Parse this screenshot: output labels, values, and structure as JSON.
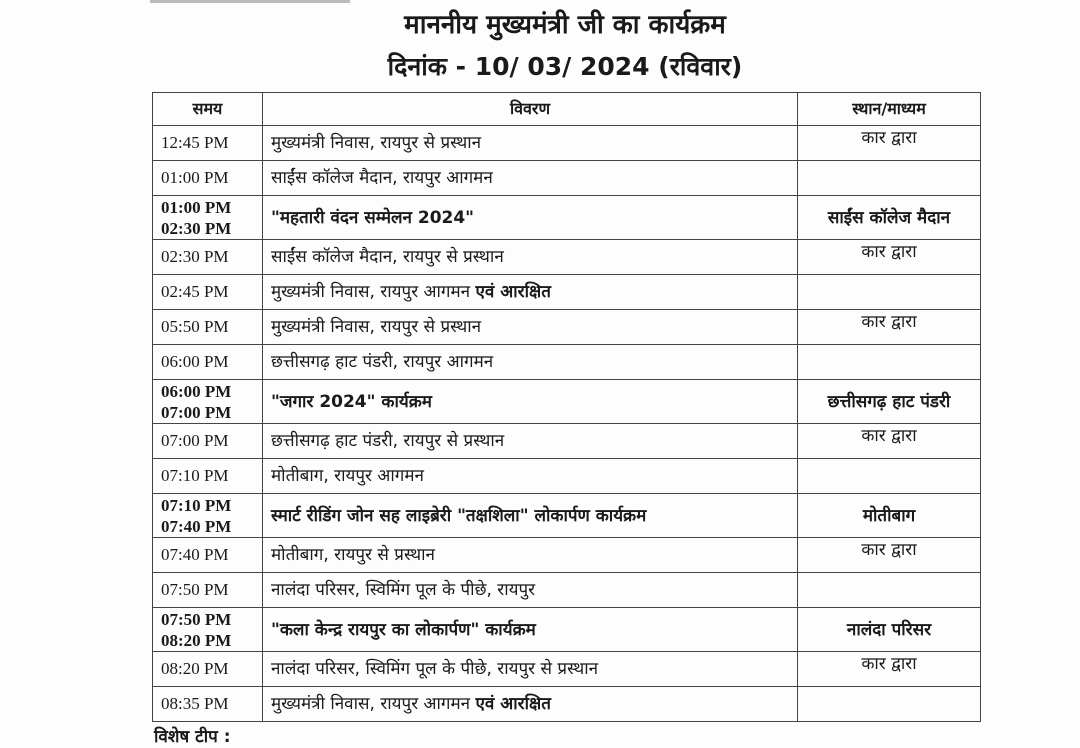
{
  "header": {
    "title": "माननीय मुख्यमंत्री जी का कार्यक्रम",
    "date_line": "दिनांक - 10/ 03/ 2024 (रविवार)"
  },
  "table": {
    "columns": [
      "समय",
      "विवरण",
      "स्थान/माध्यम"
    ],
    "rows": [
      {
        "time": "12:45 PM",
        "time2": "",
        "desc": "मुख्यमंत्री निवास, रायपुर से प्रस्थान",
        "desc_bold": "",
        "loc": "कार द्वारा",
        "emphasis": false
      },
      {
        "time": "01:00 PM",
        "time2": "",
        "desc": "साईंस कॉलेज मैदान, रायपुर आगमन",
        "desc_bold": "",
        "loc": "",
        "emphasis": false
      },
      {
        "time": "01:00 PM",
        "time2": "02:30 PM",
        "desc": "\"महतारी वंदन सम्मेलन 2024\"",
        "desc_bold": "",
        "loc": "साईंस कॉलेज मैदान",
        "emphasis": true
      },
      {
        "time": "02:30 PM",
        "time2": "",
        "desc": "साईंस कॉलेज मैदान, रायपुर से प्रस्थान",
        "desc_bold": "",
        "loc": "कार द्वारा",
        "emphasis": false
      },
      {
        "time": "02:45 PM",
        "time2": "",
        "desc": "मुख्यमंत्री निवास, रायपुर आगमन ",
        "desc_bold": "एवं आरक्षित",
        "loc": "",
        "emphasis": false
      },
      {
        "time": "05:50 PM",
        "time2": "",
        "desc": "मुख्यमंत्री निवास, रायपुर से प्रस्थान",
        "desc_bold": "",
        "loc": "कार द्वारा",
        "emphasis": false
      },
      {
        "time": "06:00 PM",
        "time2": "",
        "desc": "छत्तीसगढ़ हाट पंडरी, रायपुर आगमन",
        "desc_bold": "",
        "loc": "",
        "emphasis": false
      },
      {
        "time": "06:00 PM",
        "time2": "07:00 PM",
        "desc": "\"जगार 2024\" कार्यक्रम",
        "desc_bold": "",
        "loc": "छत्तीसगढ़ हाट पंडरी",
        "emphasis": true
      },
      {
        "time": "07:00 PM",
        "time2": "",
        "desc": "छत्तीसगढ़ हाट पंडरी, रायपुर से प्रस्थान",
        "desc_bold": "",
        "loc": "कार द्वारा",
        "emphasis": false
      },
      {
        "time": "07:10 PM",
        "time2": "",
        "desc": "मोतीबाग, रायपुर आगमन",
        "desc_bold": "",
        "loc": "",
        "emphasis": false
      },
      {
        "time": "07:10 PM",
        "time2": "07:40 PM",
        "desc": "स्मार्ट रीडिंग जोन सह लाइब्रेरी \"तक्षशिला\" लोकार्पण कार्यक्रम",
        "desc_bold": "",
        "loc": "मोतीबाग",
        "emphasis": true
      },
      {
        "time": "07:40 PM",
        "time2": "",
        "desc": "मोतीबाग, रायपुर से प्रस्थान",
        "desc_bold": "",
        "loc": "कार द्वारा",
        "emphasis": false
      },
      {
        "time": "07:50 PM",
        "time2": "",
        "desc": "नालंदा परिसर, स्विमिंग पूल के पीछे, रायपुर",
        "desc_bold": "",
        "loc": "",
        "emphasis": false
      },
      {
        "time": "07:50 PM",
        "time2": "08:20 PM",
        "desc": "\"कला केन्द्र रायपुर का लोकार्पण\" कार्यक्रम",
        "desc_bold": "",
        "loc": "नालंदा परिसर",
        "emphasis": true
      },
      {
        "time": "08:20 PM",
        "time2": "",
        "desc": "नालंदा परिसर, स्विमिंग पूल के पीछे, रायपुर से प्रस्थान",
        "desc_bold": "",
        "loc": "कार द्वारा",
        "emphasis": false
      },
      {
        "time": "08:35 PM",
        "time2": "",
        "desc": "मुख्यमंत्री निवास, रायपुर आगमन ",
        "desc_bold": "एवं आरक्षित",
        "loc": "",
        "emphasis": false
      }
    ]
  },
  "footer": {
    "note": "विशेष टीप :"
  }
}
